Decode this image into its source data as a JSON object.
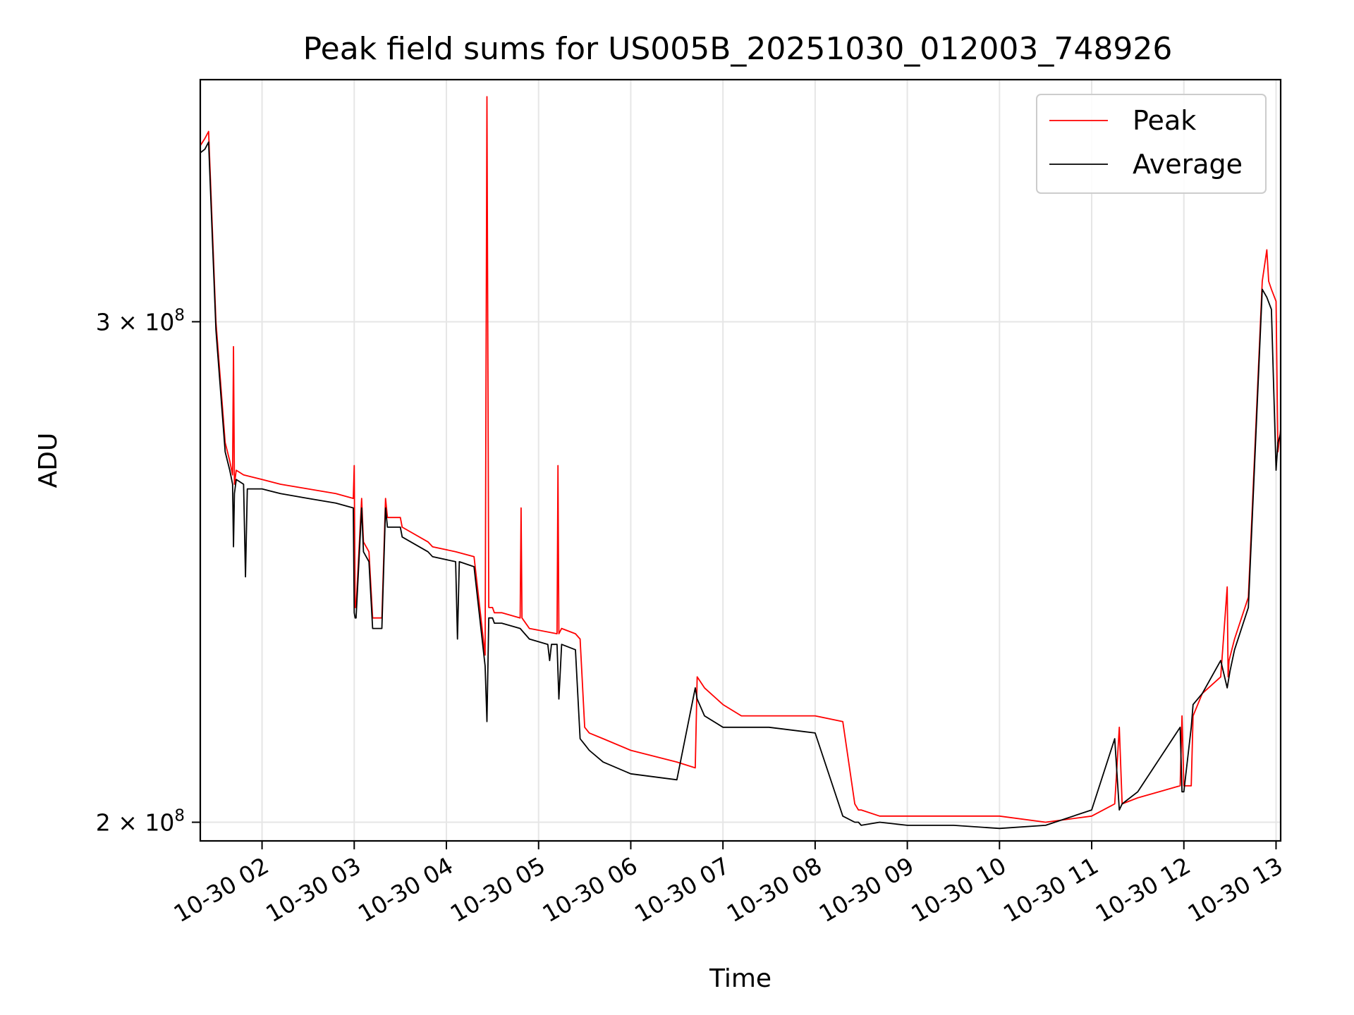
{
  "chart_data": {
    "type": "line",
    "title": "Peak field sums for US005B_20251030_012003_748926",
    "xlabel": "Time",
    "ylabel": "ADU",
    "yscale": "log",
    "xlim": [
      1.33,
      13.05
    ],
    "ylim": [
      197000000,
      365000000
    ],
    "grid": true,
    "legend": {
      "position": "top-right",
      "entries": [
        "Peak",
        "Average"
      ]
    },
    "x_ticks": [
      {
        "value": 2,
        "label": "10-30 02"
      },
      {
        "value": 3,
        "label": "10-30 03"
      },
      {
        "value": 4,
        "label": "10-30 04"
      },
      {
        "value": 5,
        "label": "10-30 05"
      },
      {
        "value": 6,
        "label": "10-30 06"
      },
      {
        "value": 7,
        "label": "10-30 07"
      },
      {
        "value": 8,
        "label": "10-30 08"
      },
      {
        "value": 9,
        "label": "10-30 09"
      },
      {
        "value": 10,
        "label": "10-30 10"
      },
      {
        "value": 11,
        "label": "10-30 11"
      },
      {
        "value": 12,
        "label": "10-30 12"
      },
      {
        "value": 13,
        "label": "10-30 13"
      }
    ],
    "y_ticks": [
      {
        "value": 200000000,
        "mantissa": "2",
        "exponent": "8"
      },
      {
        "value": 300000000,
        "mantissa": "3",
        "exponent": "8"
      }
    ],
    "series": [
      {
        "name": "Peak",
        "color": "#ff0000",
        "x": [
          1.33,
          1.38,
          1.42,
          1.5,
          1.6,
          1.65,
          1.68,
          1.69,
          1.7,
          1.72,
          1.8,
          2.0,
          2.2,
          2.5,
          2.8,
          2.99,
          3.0,
          3.01,
          3.02,
          3.08,
          3.1,
          3.16,
          3.2,
          3.3,
          3.34,
          3.36,
          3.5,
          3.52,
          3.8,
          3.85,
          4.1,
          4.3,
          4.42,
          4.44,
          4.46,
          4.47,
          4.49,
          4.5,
          4.52,
          4.6,
          4.8,
          4.81,
          4.82,
          4.9,
          5.2,
          5.21,
          5.22,
          5.25,
          5.4,
          5.45,
          5.5,
          5.55,
          5.7,
          6.0,
          6.5,
          6.7,
          6.72,
          6.8,
          7.0,
          7.2,
          7.5,
          8.0,
          8.3,
          8.43,
          8.47,
          8.5,
          8.7,
          9.0,
          9.5,
          10.0,
          10.5,
          11.0,
          11.25,
          11.3,
          11.33,
          11.5,
          11.96,
          11.98,
          12.0,
          12.08,
          12.1,
          12.2,
          12.4,
          12.47,
          12.48,
          12.49,
          12.55,
          12.7,
          12.85,
          12.9,
          12.92,
          12.95,
          13.0,
          13.02,
          13.05
        ],
        "y": [
          346000000,
          348000000,
          350000000,
          300000000,
          272000000,
          268000000,
          265000000,
          294000000,
          263000000,
          266000000,
          265000000,
          264000000,
          263000000,
          262000000,
          261000000,
          260000000,
          267000000,
          238000000,
          238000000,
          260000000,
          251000000,
          249000000,
          236000000,
          236000000,
          260000000,
          256000000,
          256000000,
          254000000,
          251000000,
          250000000,
          249000000,
          248000000,
          229000000,
          360000000,
          238000000,
          238000000,
          238000000,
          238000000,
          237000000,
          237000000,
          236000000,
          258000000,
          236000000,
          234000000,
          233000000,
          267000000,
          233000000,
          234000000,
          233000000,
          232000000,
          216000000,
          215000000,
          214000000,
          212000000,
          210000000,
          209000000,
          225000000,
          223000000,
          220000000,
          218000000,
          218000000,
          218000000,
          217000000,
          203000000,
          202000000,
          202000000,
          201000000,
          201000000,
          201000000,
          201000000,
          200000000,
          201000000,
          203000000,
          216000000,
          203000000,
          204000000,
          206000000,
          218000000,
          206000000,
          206000000,
          218000000,
          222000000,
          225000000,
          242000000,
          225000000,
          228000000,
          232000000,
          240000000,
          310000000,
          318000000,
          310000000,
          308000000,
          305000000,
          270000000,
          275000000
        ]
      },
      {
        "name": "Average",
        "color": "#000000",
        "x": [
          1.33,
          1.38,
          1.42,
          1.5,
          1.6,
          1.65,
          1.68,
          1.69,
          1.7,
          1.72,
          1.8,
          1.82,
          1.84,
          2.0,
          2.2,
          2.5,
          2.8,
          2.99,
          3.0,
          3.01,
          3.02,
          3.08,
          3.1,
          3.16,
          3.2,
          3.3,
          3.34,
          3.36,
          3.5,
          3.52,
          3.8,
          3.85,
          4.1,
          4.12,
          4.14,
          4.3,
          4.42,
          4.44,
          4.46,
          4.48,
          4.5,
          4.52,
          4.6,
          4.8,
          4.9,
          5.1,
          5.12,
          5.14,
          5.2,
          5.22,
          5.25,
          5.4,
          5.45,
          5.5,
          5.55,
          5.7,
          6.0,
          6.5,
          6.7,
          6.72,
          6.8,
          7.0,
          7.2,
          7.5,
          8.0,
          8.3,
          8.43,
          8.47,
          8.5,
          8.7,
          9.0,
          9.5,
          10.0,
          10.5,
          11.0,
          11.25,
          11.3,
          11.33,
          11.5,
          11.96,
          11.98,
          12.0,
          12.08,
          12.1,
          12.2,
          12.4,
          12.47,
          12.5,
          12.55,
          12.7,
          12.85,
          12.9,
          12.95,
          13.0,
          13.02,
          13.05
        ],
        "y": [
          344000000,
          345000000,
          347000000,
          298000000,
          270000000,
          266000000,
          263000000,
          250000000,
          261000000,
          264000000,
          263000000,
          244000000,
          262000000,
          262000000,
          261000000,
          260000000,
          259000000,
          258000000,
          237000000,
          236000000,
          236000000,
          258000000,
          249000000,
          247000000,
          234000000,
          234000000,
          258000000,
          254000000,
          254000000,
          252000000,
          249000000,
          248000000,
          247000000,
          232000000,
          247000000,
          246000000,
          227000000,
          217000000,
          236000000,
          236000000,
          236000000,
          235000000,
          235000000,
          234000000,
          232000000,
          231000000,
          228000000,
          231000000,
          231000000,
          221000000,
          231000000,
          230000000,
          214000000,
          213000000,
          212000000,
          210000000,
          208000000,
          207000000,
          223000000,
          221000000,
          218000000,
          216000000,
          216000000,
          216000000,
          215000000,
          201000000,
          200000000,
          200000000,
          199500000,
          200000000,
          199500000,
          199500000,
          199000000,
          199500000,
          202000000,
          214000000,
          202000000,
          203000000,
          205000000,
          216000000,
          205000000,
          205000000,
          216000000,
          220000000,
          222000000,
          228000000,
          223000000,
          226000000,
          230000000,
          238000000,
          308000000,
          306000000,
          303000000,
          266000000,
          272000000,
          274000000
        ]
      }
    ]
  }
}
